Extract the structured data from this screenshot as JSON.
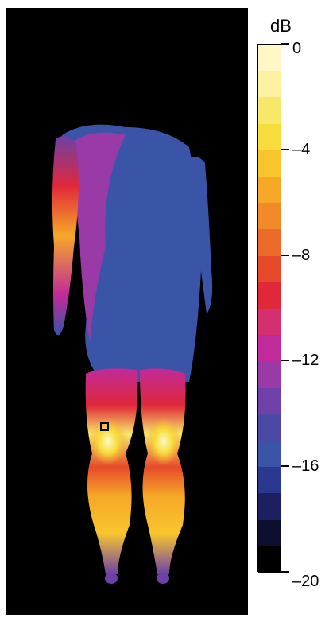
{
  "colorbar": {
    "unit": "dB",
    "min": -20,
    "max": 0,
    "ticks": [
      {
        "value": 0,
        "label": "0"
      },
      {
        "value": -4,
        "label": "–4"
      },
      {
        "value": -8,
        "label": "–8"
      },
      {
        "value": -12,
        "label": "–12"
      },
      {
        "value": -16,
        "label": "–16"
      },
      {
        "value": -20,
        "label": "–20"
      }
    ],
    "levels": [
      "#fff7c6",
      "#fcf1a0",
      "#f8e86a",
      "#f7dd3a",
      "#f8c62c",
      "#f6a828",
      "#f28a2a",
      "#ec6a2a",
      "#e64a2a",
      "#e0283a",
      "#d43070",
      "#c02a9a",
      "#9a3aa6",
      "#6e40a8",
      "#4a4aa6",
      "#3a54a8",
      "#2a3890",
      "#1c2060",
      "#0e0e2e",
      "#000000"
    ]
  },
  "image": {
    "background": "#000000",
    "marker_visible": true
  }
}
